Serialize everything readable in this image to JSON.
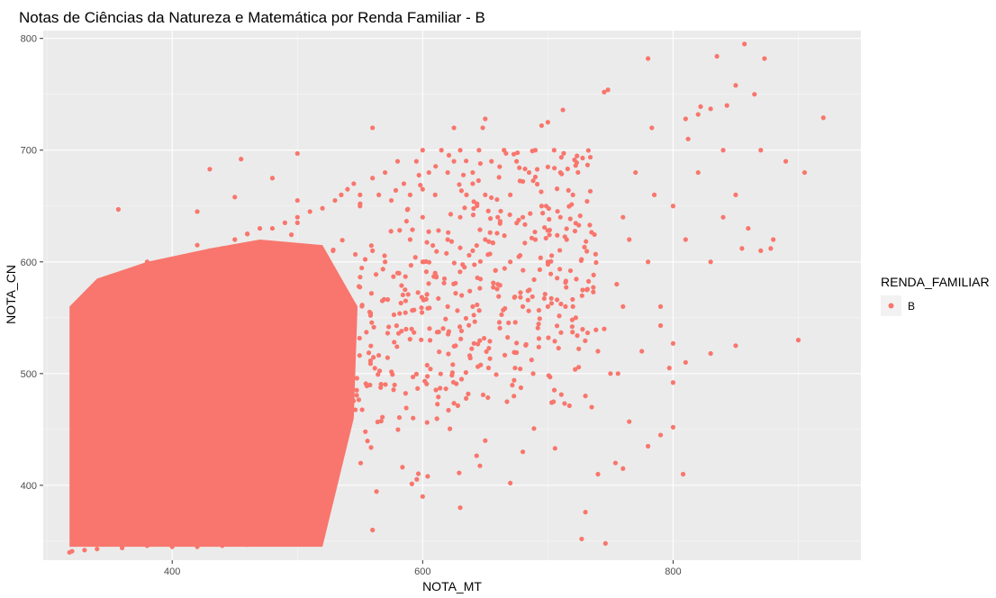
{
  "chart_data": {
    "type": "scatter",
    "title": "Notas de Ciências da Natureza e Matemática por Renda Familiar - B",
    "xlabel": "NOTA_MT",
    "ylabel": "NOTA_CN",
    "xlim": [
      297,
      950
    ],
    "ylim": [
      333,
      807
    ],
    "x_ticks": [
      400,
      600,
      800
    ],
    "y_ticks": [
      400,
      500,
      600,
      700,
      800
    ],
    "grid": true,
    "legend": {
      "title": "RENDA_FAMILIAR",
      "position": "right",
      "entries": [
        "B"
      ]
    },
    "series": [
      {
        "name": "B",
        "color": "#F8766D",
        "dense_region": {
          "x_range": [
            318,
            520
          ],
          "y_range": [
            345,
            600
          ]
        },
        "x": [
          318,
          320,
          322,
          325,
          330,
          333,
          340,
          345,
          350,
          360,
          372,
          385,
          400,
          410,
          420,
          430,
          440,
          450,
          460,
          470,
          480,
          490,
          500,
          510,
          520,
          340,
          355,
          380,
          420,
          460,
          500,
          530,
          535,
          540,
          545,
          550,
          560,
          560,
          565,
          570,
          570,
          575,
          580,
          580,
          585,
          590,
          590,
          595,
          600,
          600,
          600,
          605,
          610,
          610,
          615,
          620,
          620,
          620,
          625,
          630,
          630,
          635,
          640,
          640,
          640,
          645,
          650,
          650,
          655,
          660,
          660,
          665,
          670,
          670,
          675,
          680,
          680,
          685,
          690,
          690,
          695,
          700,
          700,
          705,
          710,
          710,
          715,
          720,
          720,
          730,
          735,
          740,
          745,
          750,
          755,
          760,
          765,
          770,
          780,
          785,
          790,
          800,
          810,
          820,
          830,
          840,
          850,
          860,
          870,
          880,
          890,
          900,
          905,
          920,
          780,
          835,
          857,
          812,
          865,
          873,
          843,
          850,
          870,
          748,
          712,
          745,
          700,
          648,
          695,
          783,
          822,
          830,
          775,
          756,
          790,
          797,
          760,
          800,
          810,
          830,
          800,
          850,
          855,
          878,
          810,
          820,
          840,
          730,
          746,
          727,
          760,
          765,
          754,
          780,
          790,
          800,
          808,
          670,
          740,
          680,
          650,
          630,
          600,
          560,
          520,
          500,
          480,
          460,
          440,
          420,
          400,
          380,
          360,
          340,
          330,
          320,
          357,
          430,
          455,
          480,
          500,
          560,
          625,
          650,
          420,
          450,
          500,
          550,
          600,
          640,
          680,
          690,
          700
        ],
        "y": [
          340,
          360,
          380,
          400,
          420,
          440,
          460,
          480,
          500,
          520,
          540,
          560,
          580,
          590,
          600,
          610,
          612,
          620,
          625,
          630,
          630,
          635,
          640,
          645,
          648,
          565,
          585,
          600,
          615,
          625,
          635,
          655,
          660,
          665,
          670,
          650,
          675,
          610,
          660,
          680,
          600,
          655,
          690,
          590,
          670,
          660,
          620,
          690,
          700,
          600,
          640,
          680,
          660,
          590,
          700,
          620,
          680,
          560,
          690,
          640,
          700,
          660,
          610,
          680,
          560,
          700,
          620,
          660,
          690,
          640,
          580,
          700,
          660,
          600,
          690,
          640,
          560,
          680,
          700,
          620,
          650,
          600,
          560,
          700,
          640,
          680,
          620,
          560,
          660,
          480,
          470,
          520,
          540,
          500,
          580,
          640,
          620,
          680,
          600,
          660,
          560,
          650,
          620,
          680,
          600,
          640,
          660,
          630,
          610,
          620,
          690,
          530,
          680,
          729,
          782,
          784,
          795,
          710,
          750,
          782,
          740,
          758,
          700,
          754,
          736,
          752,
          725,
          720,
          722,
          720,
          739,
          737,
          520,
          500,
          543,
          505,
          560,
          492,
          510,
          518,
          527,
          525,
          612,
          612,
          728,
          732,
          700,
          376,
          348,
          352,
          415,
          457,
          420,
          435,
          445,
          452,
          410,
          402,
          410,
          430,
          440,
          380,
          390,
          360,
          355,
          350,
          350,
          347,
          346,
          345,
          345,
          346,
          344,
          343,
          342,
          341,
          647,
          683,
          692,
          675,
          697,
          720,
          720,
          728,
          645,
          658,
          655,
          660,
          665,
          670,
          672,
          676,
          685
        ]
      }
    ]
  }
}
